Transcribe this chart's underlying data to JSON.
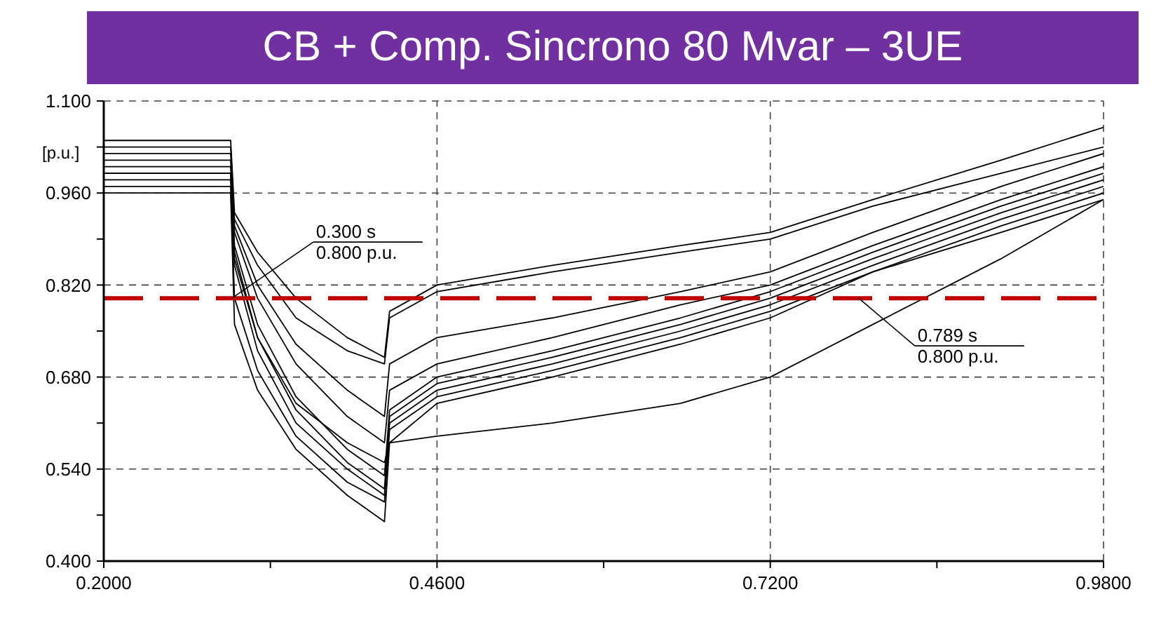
{
  "chart_data": {
    "type": "line",
    "title": "CB + Comp. Sincrono 80 Mvar – 3UE",
    "ylabel": "[p.u.]",
    "x": [
      0.2,
      0.299,
      0.302,
      0.32,
      0.35,
      0.39,
      0.419,
      0.423,
      0.46,
      0.55,
      0.65,
      0.72,
      0.8,
      0.9,
      0.98
    ],
    "series": [
      {
        "color": "#000000",
        "values": [
          1.04,
          1.04,
          0.93,
          0.87,
          0.8,
          0.74,
          0.71,
          0.78,
          0.82,
          0.85,
          0.88,
          0.9,
          0.95,
          1.01,
          1.06
        ]
      },
      {
        "color": "#000000",
        "values": [
          1.02,
          1.02,
          0.92,
          0.85,
          0.77,
          0.72,
          0.7,
          0.77,
          0.81,
          0.84,
          0.87,
          0.89,
          0.94,
          0.99,
          1.03
        ]
      },
      {
        "color": "#000000",
        "values": [
          1.0,
          1.0,
          0.9,
          0.8,
          0.7,
          0.62,
          0.58,
          0.66,
          0.7,
          0.74,
          0.79,
          0.82,
          0.88,
          0.95,
          1.0
        ]
      },
      {
        "color": "#000000",
        "values": [
          0.99,
          0.99,
          0.88,
          0.76,
          0.65,
          0.57,
          0.53,
          0.63,
          0.68,
          0.72,
          0.77,
          0.81,
          0.87,
          0.94,
          0.99
        ]
      },
      {
        "color": "#000000",
        "values": [
          1.01,
          1.01,
          0.87,
          0.74,
          0.63,
          0.55,
          0.51,
          0.62,
          0.67,
          0.71,
          0.76,
          0.8,
          0.86,
          0.93,
          0.98
        ]
      },
      {
        "color": "#000000",
        "values": [
          0.98,
          0.98,
          0.85,
          0.72,
          0.61,
          0.54,
          0.5,
          0.61,
          0.66,
          0.7,
          0.75,
          0.79,
          0.85,
          0.92,
          0.97
        ]
      },
      {
        "color": "#000000",
        "values": [
          0.97,
          0.97,
          0.8,
          0.69,
          0.59,
          0.52,
          0.49,
          0.6,
          0.65,
          0.69,
          0.74,
          0.78,
          0.84,
          0.91,
          0.96
        ]
      },
      {
        "color": "#000000",
        "values": [
          0.96,
          0.96,
          0.76,
          0.66,
          0.57,
          0.5,
          0.46,
          0.58,
          0.64,
          0.68,
          0.73,
          0.77,
          0.84,
          0.9,
          0.95
        ]
      },
      {
        "color": "#000000",
        "values": [
          0.99,
          0.99,
          0.86,
          0.74,
          0.64,
          0.58,
          0.55,
          0.58,
          0.59,
          0.61,
          0.64,
          0.68,
          0.76,
          0.86,
          0.95
        ]
      },
      {
        "color": "#000000",
        "values": [
          1.03,
          1.03,
          0.91,
          0.82,
          0.73,
          0.66,
          0.62,
          0.7,
          0.74,
          0.77,
          0.81,
          0.84,
          0.9,
          0.97,
          1.02
        ]
      }
    ],
    "xlim": [
      0.2,
      0.98
    ],
    "xticks": [
      {
        "value": 0.2,
        "label": "0.2000"
      },
      {
        "value": 0.33,
        "label": null
      },
      {
        "value": 0.46,
        "label": "0.4600"
      },
      {
        "value": 0.59,
        "label": null
      },
      {
        "value": 0.72,
        "label": "0.7200"
      },
      {
        "value": 0.85,
        "label": null
      },
      {
        "value": 0.98,
        "label": "0.9800"
      }
    ],
    "ylim": [
      0.4,
      1.1
    ],
    "yticks": [
      {
        "value": 0.4,
        "label": "0.400"
      },
      {
        "value": 0.47,
        "label": null
      },
      {
        "value": 0.54,
        "label": "0.540"
      },
      {
        "value": 0.61,
        "label": null
      },
      {
        "value": 0.68,
        "label": "0.680"
      },
      {
        "value": 0.75,
        "label": null
      },
      {
        "value": 0.82,
        "label": "0.820"
      },
      {
        "value": 0.89,
        "label": null
      },
      {
        "value": 0.96,
        "label": "0.960"
      },
      {
        "value": 1.03,
        "label": null
      },
      {
        "value": 1.1,
        "label": "1.100"
      }
    ],
    "grid": true,
    "marker": "none",
    "line_style": "solid",
    "ref_lines": [
      {
        "axis": "y",
        "value": 0.8,
        "color": "#c00000",
        "line_style": "dashed"
      }
    ],
    "annotations": [
      {
        "text": "0.300 s\n0.800 p.u.",
        "x": 0.3,
        "y": 0.8
      },
      {
        "text": "0.789 s\n0.800 p.u.",
        "x": 0.789,
        "y": 0.8
      }
    ]
  }
}
